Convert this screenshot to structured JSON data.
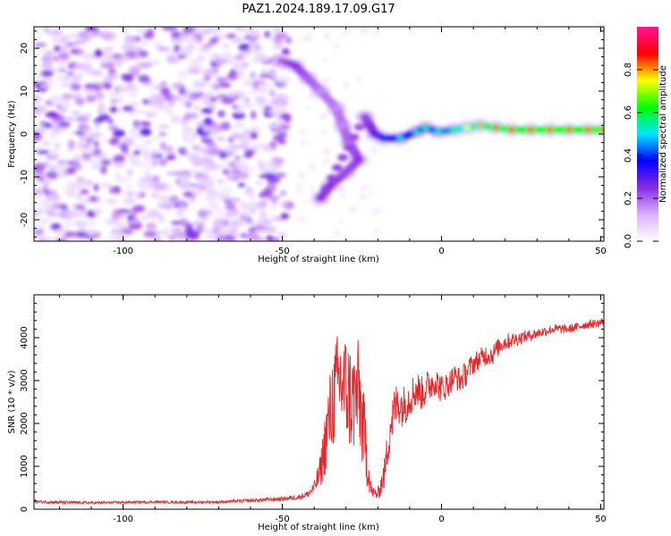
{
  "title": "PAZ1.2024.189.17.09.G17",
  "colors": {
    "snr_line": "#e8272a",
    "colormap": [
      "#ffffff",
      "#d9b3ff",
      "#8a2be2",
      "#0000ff",
      "#00e5ff",
      "#00ff00",
      "#ffff00",
      "#ff0000",
      "#ff1493"
    ]
  },
  "chart_data": [
    {
      "type": "heatmap",
      "title": "",
      "xlabel": "Height of straight line (km)",
      "ylabel": "Frequency (Hz)",
      "xlim": [
        -128,
        51
      ],
      "ylim": [
        -25,
        25
      ],
      "xticks": [
        -100,
        -50,
        0,
        50
      ],
      "yticks": [
        -20,
        -10,
        0,
        10,
        20
      ],
      "xtick_labels": [
        "-100",
        "-50",
        "0",
        "50"
      ],
      "ytick_labels": [
        "-20",
        "-10",
        "0",
        "10",
        "20"
      ],
      "colorbar": {
        "label": "Normalized spectral amplitude",
        "range": [
          0,
          1
        ],
        "ticks": [
          0.0,
          0.2,
          0.4,
          0.6,
          0.8
        ],
        "tick_labels": [
          "0.0",
          "0.2",
          "0.4",
          "0.6",
          "0.8"
        ]
      },
      "noise_region": {
        "x_range": [
          -128,
          -48
        ],
        "level": [
          0.05,
          0.3
        ]
      },
      "ridge": [
        {
          "x": -50,
          "y": 17,
          "v": 0.2
        },
        {
          "x": -46,
          "y": 16,
          "v": 0.25
        },
        {
          "x": -42,
          "y": 13,
          "v": 0.2
        },
        {
          "x": -38,
          "y": 10,
          "v": 0.15
        },
        {
          "x": -33,
          "y": 6,
          "v": 0.15
        },
        {
          "x": -31,
          "y": 2,
          "v": 0.15
        },
        {
          "x": -29,
          "y": -2,
          "v": 0.18
        },
        {
          "x": -26,
          "y": -6,
          "v": 0.25
        },
        {
          "x": -30,
          "y": -9,
          "v": 0.22
        },
        {
          "x": -35,
          "y": -12,
          "v": 0.25
        },
        {
          "x": -38,
          "y": -15,
          "v": 0.25
        },
        {
          "x": -24,
          "y": 4,
          "v": 0.22
        },
        {
          "x": -21,
          "y": 0,
          "v": 0.3
        },
        {
          "x": -18,
          "y": -1,
          "v": 0.4
        },
        {
          "x": -13,
          "y": -1,
          "v": 0.5
        },
        {
          "x": -8,
          "y": 0.5,
          "v": 0.55
        },
        {
          "x": -5,
          "y": 1.5,
          "v": 0.6
        },
        {
          "x": -1,
          "y": 0.5,
          "v": 0.6
        },
        {
          "x": 4,
          "y": 1,
          "v": 0.65
        },
        {
          "x": 8,
          "y": 1.5,
          "v": 0.75
        },
        {
          "x": 12,
          "y": 2,
          "v": 0.8
        },
        {
          "x": 17,
          "y": 1.5,
          "v": 0.85
        },
        {
          "x": 22,
          "y": 1,
          "v": 0.88
        },
        {
          "x": 28,
          "y": 1,
          "v": 0.9
        },
        {
          "x": 34,
          "y": 1,
          "v": 0.92
        },
        {
          "x": 40,
          "y": 1,
          "v": 0.93
        },
        {
          "x": 46,
          "y": 1,
          "v": 0.93
        },
        {
          "x": 51,
          "y": 1,
          "v": 0.93
        }
      ]
    },
    {
      "type": "line",
      "title": "",
      "xlabel": "Height of straight line (km)",
      "ylabel": "SNR (10 * v/v)",
      "xlim": [
        -128,
        51
      ],
      "ylim": [
        0,
        5000
      ],
      "xticks": [
        -100,
        -50,
        0,
        50
      ],
      "yticks": [
        0,
        1000,
        2000,
        3000,
        4000
      ],
      "xtick_labels": [
        "-100",
        "-50",
        "0",
        "50"
      ],
      "ytick_labels": [
        "0",
        "1000",
        "2000",
        "3000",
        "4000"
      ],
      "series": [
        {
          "color": "#e8272a",
          "x": [
            -128,
            -120,
            -110,
            -100,
            -90,
            -80,
            -70,
            -60,
            -50,
            -45,
            -42,
            -40,
            -38,
            -36,
            -34,
            -32,
            -30,
            -28,
            -26,
            -24,
            -22,
            -20,
            -18,
            -16,
            -14,
            -12,
            -10,
            -8,
            -6,
            -4,
            -2,
            0,
            2,
            4,
            6,
            8,
            10,
            12,
            14,
            16,
            18,
            20,
            25,
            30,
            35,
            40,
            45,
            50,
            51
          ],
          "y": [
            180,
            160,
            150,
            160,
            170,
            160,
            170,
            200,
            240,
            280,
            350,
            500,
            900,
            1800,
            2600,
            3000,
            2800,
            2500,
            2700,
            1500,
            400,
            350,
            800,
            2000,
            2500,
            2400,
            2600,
            2800,
            2700,
            2900,
            3000,
            2800,
            2900,
            3100,
            3000,
            3200,
            3400,
            3500,
            3600,
            3600,
            3800,
            3900,
            4000,
            4100,
            4200,
            4200,
            4300,
            4350,
            4400
          ],
          "noise": [
            30,
            40,
            30,
            30,
            30,
            30,
            30,
            40,
            50,
            60,
            80,
            150,
            400,
            900,
            1200,
            1300,
            1300,
            1300,
            1300,
            900,
            150,
            150,
            350,
            600,
            500,
            500,
            450,
            450,
            400,
            400,
            350,
            350,
            300,
            300,
            300,
            300,
            250,
            250,
            250,
            250,
            200,
            200,
            150,
            120,
            120,
            100,
            100,
            100,
            100
          ]
        }
      ]
    }
  ]
}
